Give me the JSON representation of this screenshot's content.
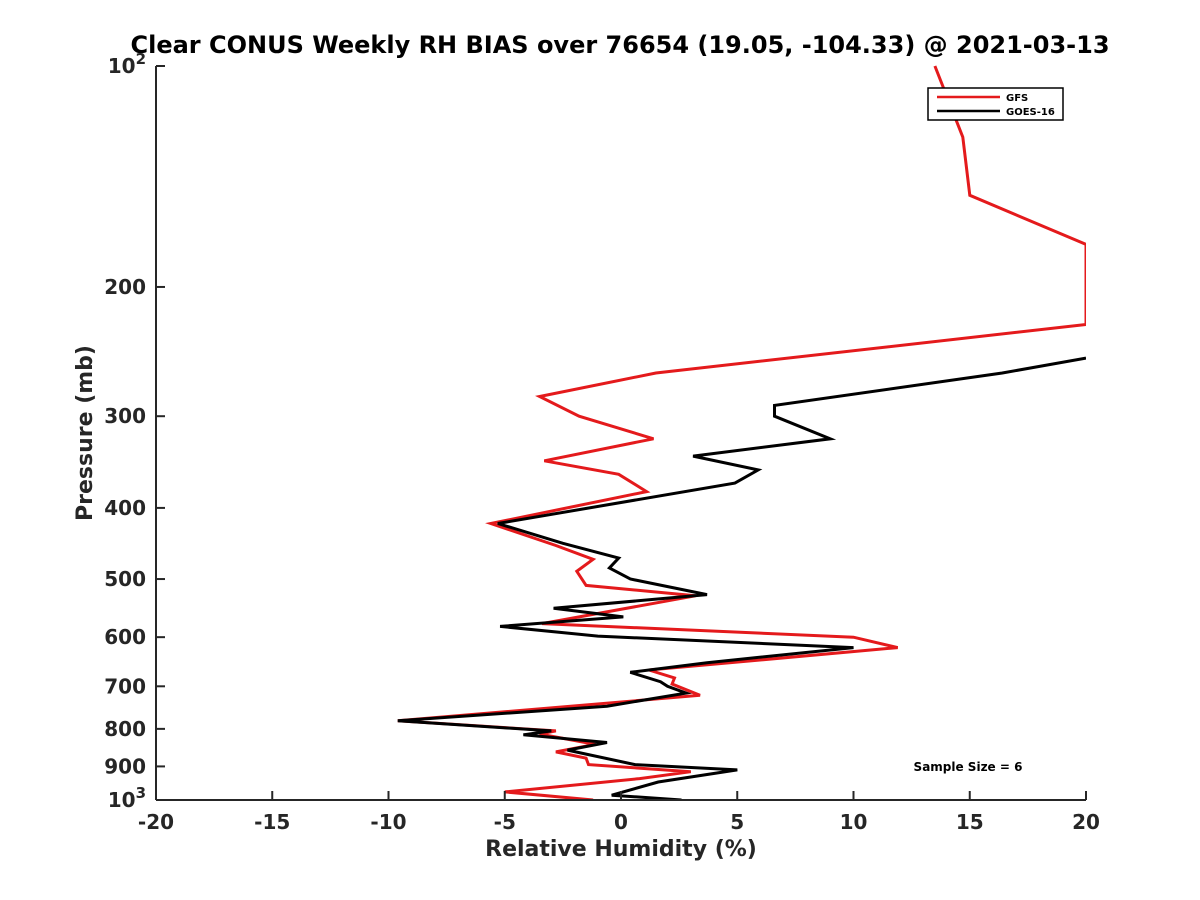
{
  "chart_data": {
    "type": "line",
    "title": "Clear CONUS Weekly RH BIAS over 76654 (19.05, -104.33) @ 2021-03-13",
    "xlabel": "Relative Humidity (%)",
    "ylabel": "Pressure (mb)",
    "xlim": [
      -20,
      20
    ],
    "ylim": [
      100,
      1000
    ],
    "y_scale": "log",
    "y_reversed": true,
    "grid": false,
    "legend_position": "top-right",
    "x_ticks": [
      {
        "value": -20,
        "label": "-20"
      },
      {
        "value": -15,
        "label": "-15"
      },
      {
        "value": -10,
        "label": "-10"
      },
      {
        "value": -5,
        "label": "-5"
      },
      {
        "value": 0,
        "label": "0"
      },
      {
        "value": 5,
        "label": "5"
      },
      {
        "value": 10,
        "label": "10"
      },
      {
        "value": 15,
        "label": "15"
      },
      {
        "value": 20,
        "label": "20"
      }
    ],
    "y_ticks": [
      {
        "value": 100,
        "base": "10",
        "exp": "2"
      },
      {
        "value": 200,
        "label": "200"
      },
      {
        "value": 300,
        "label": "300"
      },
      {
        "value": 400,
        "label": "400"
      },
      {
        "value": 500,
        "label": "500"
      },
      {
        "value": 600,
        "label": "600"
      },
      {
        "value": 700,
        "label": "700"
      },
      {
        "value": 800,
        "label": "800"
      },
      {
        "value": 900,
        "label": "900"
      },
      {
        "value": 1000,
        "base": "10",
        "exp": "3"
      }
    ],
    "series": [
      {
        "name": "GFS",
        "color": "#e41a1c",
        "points": [
          [
            13.5,
            100
          ],
          [
            14.7,
            125
          ],
          [
            15.0,
            150
          ],
          [
            20.0,
            175
          ],
          [
            20.0,
            225
          ],
          [
            1.5,
            262
          ],
          [
            -3.5,
            282
          ],
          [
            -1.8,
            300
          ],
          [
            1.4,
            322
          ],
          [
            -3.3,
            345
          ],
          [
            -0.1,
            360
          ],
          [
            1.1,
            380
          ],
          [
            -5.6,
            420
          ],
          [
            -2.8,
            450
          ],
          [
            -1.2,
            470
          ],
          [
            -1.9,
            488
          ],
          [
            -1.5,
            510
          ],
          [
            3.2,
            527
          ],
          [
            -3.4,
            575
          ],
          [
            10.0,
            600
          ],
          [
            11.9,
            620
          ],
          [
            1.2,
            665
          ],
          [
            2.3,
            682
          ],
          [
            2.2,
            695
          ],
          [
            3.4,
            720
          ],
          [
            -9.6,
            780
          ],
          [
            -2.8,
            805
          ],
          [
            -3.5,
            813
          ],
          [
            -1.1,
            840
          ],
          [
            -2.8,
            860
          ],
          [
            -1.5,
            877
          ],
          [
            -1.4,
            895
          ],
          [
            3.0,
            915
          ],
          [
            0.8,
            935
          ],
          [
            -5.0,
            975
          ],
          [
            -1.2,
            1000
          ]
        ]
      },
      {
        "name": "GOES-16",
        "color": "#000000",
        "points": [
          [
            20.0,
            250
          ],
          [
            16.4,
            262
          ],
          [
            6.6,
            290
          ],
          [
            6.6,
            300
          ],
          [
            9.0,
            322
          ],
          [
            3.1,
            340
          ],
          [
            5.9,
            355
          ],
          [
            4.9,
            370
          ],
          [
            -5.3,
            420
          ],
          [
            -2.5,
            447
          ],
          [
            -0.1,
            468
          ],
          [
            -0.5,
            483
          ],
          [
            0.4,
            500
          ],
          [
            3.7,
            525
          ],
          [
            -2.9,
            548
          ],
          [
            0.1,
            563
          ],
          [
            -5.2,
            580
          ],
          [
            -1.0,
            598
          ],
          [
            10.0,
            620
          ],
          [
            3.7,
            650
          ],
          [
            0.4,
            670
          ],
          [
            1.7,
            690
          ],
          [
            2.0,
            700
          ],
          [
            2.8,
            715
          ],
          [
            -0.6,
            745
          ],
          [
            -9.6,
            780
          ],
          [
            -3.0,
            805
          ],
          [
            -4.2,
            815
          ],
          [
            -0.6,
            835
          ],
          [
            -2.3,
            855
          ],
          [
            0.6,
            895
          ],
          [
            5.0,
            910
          ],
          [
            1.6,
            945
          ],
          [
            -0.4,
            985
          ],
          [
            2.6,
            1000
          ]
        ]
      }
    ],
    "annotations": [
      {
        "text": "Sample Size = 6"
      }
    ]
  }
}
